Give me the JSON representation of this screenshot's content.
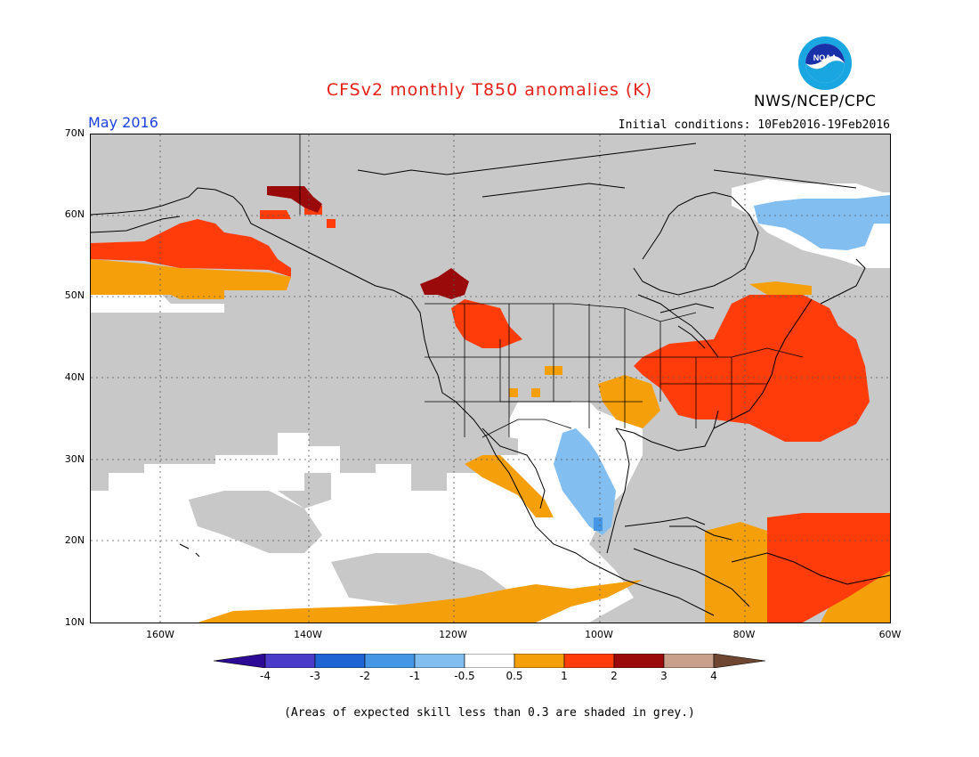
{
  "title": "CFSv2 monthly T850 anomalies (K)",
  "period": "May 2016",
  "organization": "NWS/NCEP/CPC",
  "logo_text": "NOAA",
  "initial_conditions": "Initial conditions: 10Feb2016-19Feb2016",
  "footnote": "(Areas of expected skill less than 0.3 are shaded in grey.)",
  "map": {
    "lat_labels": [
      "70N",
      "60N",
      "50N",
      "40N",
      "30N",
      "20N",
      "10N"
    ],
    "lon_labels": [
      "160W",
      "140W",
      "120W",
      "100W",
      "80W",
      "60W"
    ]
  },
  "legend": {
    "labels": [
      "-4",
      "-3",
      "-2",
      "-1",
      "-0.5",
      "0.5",
      "1",
      "2",
      "3",
      "4"
    ],
    "colors": {
      "lt_minus4": "#2c0a96",
      "m4_m3": "#4a3cc8",
      "m3_m2": "#1e64d2",
      "m2_m1": "#4696e6",
      "m1_m05": "#82bef0",
      "m05_05": "#ffffff",
      "p05_1": "#f5a00a",
      "p1_2": "#ff3c0a",
      "p2_3": "#9b0a0a",
      "p3_4": "#c8a08c",
      "gt_4": "#6e4632"
    },
    "skill_grey": "#c8c8c8"
  }
}
